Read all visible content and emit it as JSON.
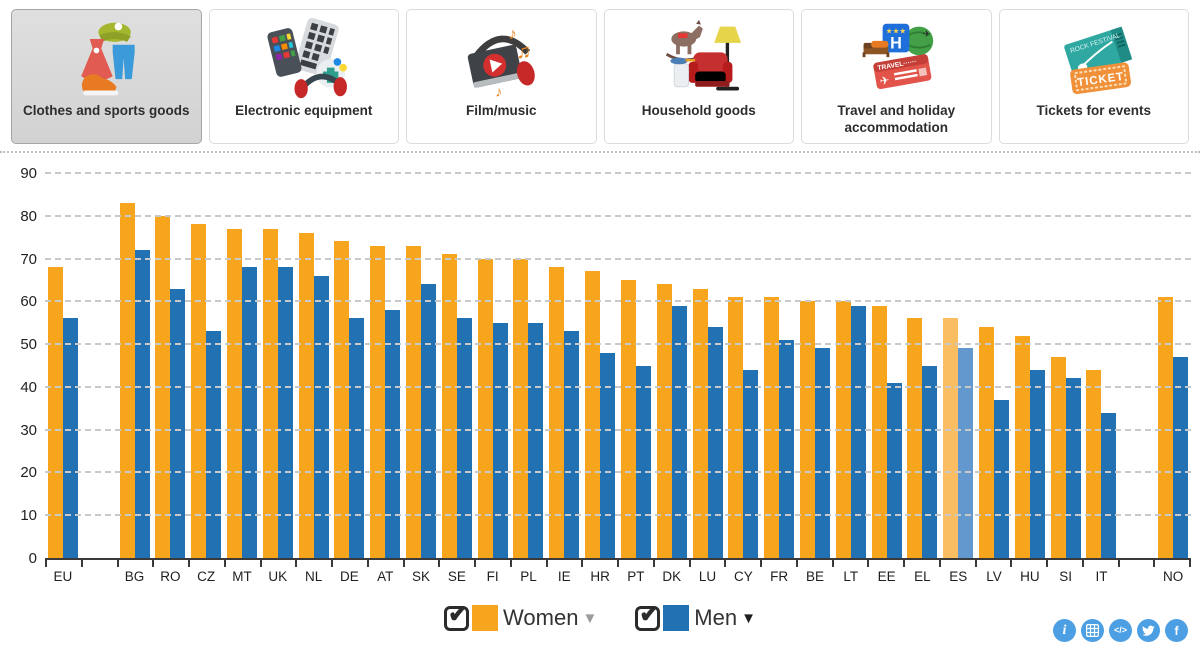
{
  "tabs": [
    {
      "label": "Clothes and sports goods",
      "icon": "clothes-icon",
      "selected": true
    },
    {
      "label": "Electronic equipment",
      "icon": "electronics-icon",
      "selected": false
    },
    {
      "label": "Film/music",
      "icon": "film-music-icon",
      "selected": false
    },
    {
      "label": "Household goods",
      "icon": "household-icon",
      "selected": false
    },
    {
      "label": "Travel and holiday accommodation",
      "icon": "travel-icon",
      "selected": false
    },
    {
      "label": "Tickets for events",
      "icon": "tickets-icon",
      "selected": false
    }
  ],
  "chart_data": {
    "type": "bar",
    "title": "",
    "xlabel": "",
    "ylabel": "",
    "ylim": [
      0,
      90
    ],
    "yticks": [
      0,
      10,
      20,
      30,
      40,
      50,
      60,
      70,
      80,
      90
    ],
    "grid": "dashed-horizontal",
    "legend_position": "bottom",
    "categories": [
      "EU",
      "",
      "BG",
      "RO",
      "CZ",
      "MT",
      "UK",
      "NL",
      "DE",
      "AT",
      "SK",
      "SE",
      "FI",
      "PL",
      "IE",
      "HR",
      "PT",
      "DK",
      "LU",
      "CY",
      "FR",
      "BE",
      "LT",
      "EE",
      "EL",
      "ES",
      "LV",
      "HU",
      "SI",
      "IT",
      "",
      "NO"
    ],
    "highlighted_category": "ES",
    "series": [
      {
        "name": "Women",
        "color": "#f8a51e",
        "faded_color": "#fabd62",
        "values": [
          68,
          null,
          83,
          80,
          78,
          77,
          77,
          76,
          74,
          73,
          73,
          71,
          70,
          70,
          68,
          67,
          65,
          64,
          63,
          61,
          61,
          60,
          60,
          59,
          56,
          56,
          54,
          52,
          47,
          44,
          null,
          61
        ]
      },
      {
        "name": "Men",
        "color": "#2271b3",
        "faded_color": "#6298cd",
        "values": [
          56,
          null,
          72,
          63,
          53,
          68,
          68,
          66,
          56,
          58,
          64,
          56,
          55,
          55,
          53,
          48,
          45,
          59,
          54,
          44,
          51,
          49,
          59,
          41,
          45,
          49,
          37,
          44,
          42,
          34,
          null,
          47
        ]
      }
    ]
  },
  "legend": [
    {
      "label": "Women",
      "color": "#f8a51e",
      "checked": true,
      "caret_color": "#9b9b9b"
    },
    {
      "label": "Men",
      "color": "#2271b3",
      "checked": true,
      "caret_color": "#1f1f1f"
    }
  ],
  "toolbar": {
    "buttons": [
      "info-icon",
      "table-icon",
      "embed-code-icon",
      "twitter-icon",
      "facebook-icon"
    ],
    "background": "#4d9fe4"
  }
}
